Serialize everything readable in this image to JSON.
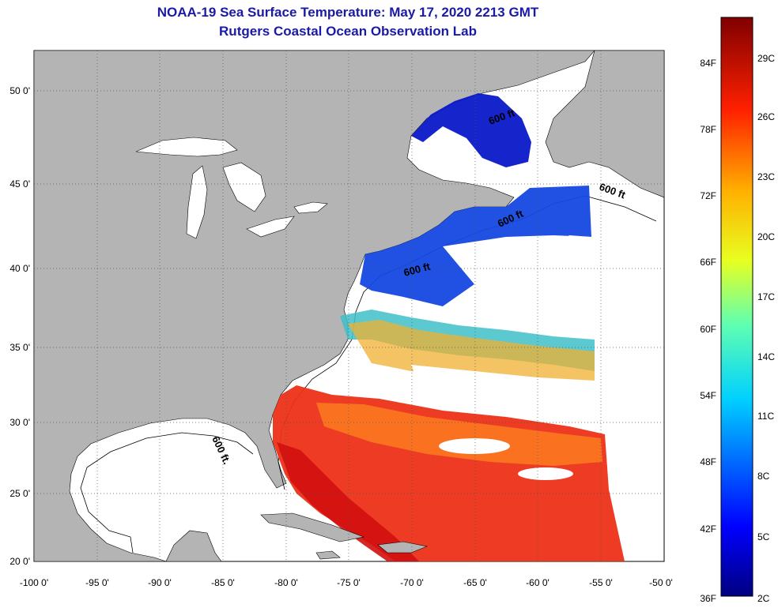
{
  "header": {
    "title": "NOAA-19 Sea Surface Temperature:  May 17, 2020 2213 GMT",
    "subtitle": "Rutgers Coastal Ocean Observation Lab"
  },
  "map": {
    "lon_ticks": [
      "-100 0'",
      "-95 0'",
      "-90 0'",
      "-85 0'",
      "-80 0'",
      "-75 0'",
      "-70 0'",
      "-65 0'",
      "-60 0'",
      "-55 0'",
      "-50 0'"
    ],
    "lat_ticks": [
      "50 0'",
      "45 0'",
      "40 0'",
      "35 0'",
      "30 0'",
      "25 0'",
      "20 0'"
    ],
    "contour_label": "600 ft",
    "contour_label_gulf": "600 ft.",
    "colors": {
      "land": "#b4b4b4",
      "water": "#ffffff",
      "cold": "#0a2ad8",
      "warm": "#e8261a"
    }
  },
  "colorbar": {
    "f_labels": [
      "84F",
      "78F",
      "72F",
      "66F",
      "60F",
      "54F",
      "48F",
      "42F",
      "36F"
    ],
    "c_labels": [
      "29C",
      "26C",
      "23C",
      "20C",
      "17C",
      "14C",
      "11C",
      "8C",
      "5C",
      "2C"
    ]
  }
}
